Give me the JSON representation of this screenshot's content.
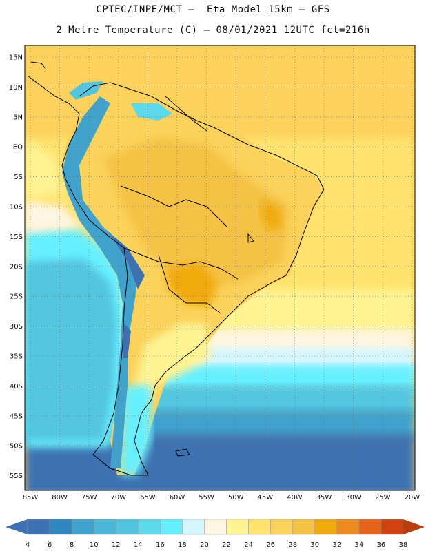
{
  "title_line1": "CPTEC/INPE/MCT –  Eta Model 15km – GFS",
  "title_line2": "2 Metre Temperature (C) – 08/01/2021 12UTC fct=216h",
  "lat_labels": [
    "15N",
    "10N",
    "5N",
    "EQ",
    "5S",
    "10S",
    "15S",
    "20S",
    "25S",
    "30S",
    "35S",
    "40S",
    "45S",
    "50S",
    "55S"
  ],
  "lon_labels": [
    "85W",
    "80W",
    "75W",
    "70W",
    "65W",
    "60W",
    "55W",
    "50W",
    "45W",
    "40W",
    "35W",
    "30W",
    "25W",
    "20W"
  ],
  "colorbar": {
    "ticks": [
      "4",
      "6",
      "8",
      "10",
      "12",
      "14",
      "16",
      "18",
      "20",
      "22",
      "24",
      "26",
      "28",
      "30",
      "32",
      "34",
      "36",
      "38"
    ],
    "colors": [
      "#3d72b2",
      "#2f86c1",
      "#41a2cc",
      "#4cb6d8",
      "#52c6e0",
      "#5cd9ea",
      "#66f0ff",
      "#d4f6ff",
      "#fff5e2",
      "#fff392",
      "#ffe36e",
      "#fbd25a",
      "#f4c244",
      "#f1aa0c",
      "#eb8a1e",
      "#e5641a",
      "#d14211"
    ],
    "low_color": "#3d72b2",
    "high_color": "#b93f10"
  }
}
